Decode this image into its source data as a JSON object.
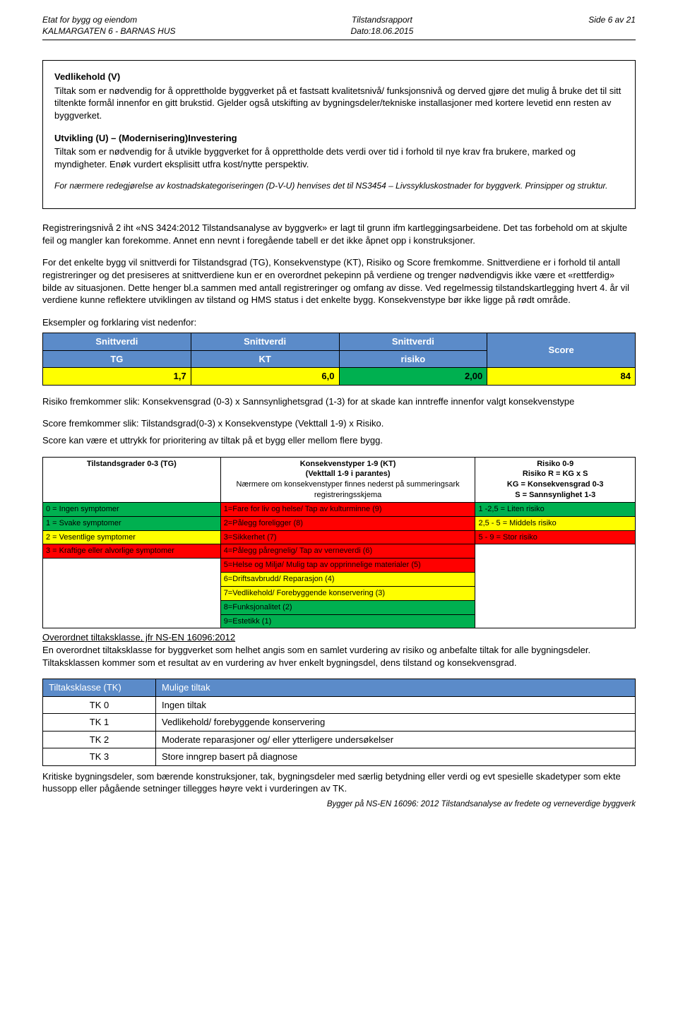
{
  "header": {
    "agency": "Etat for bygg og eiendom",
    "address": "KALMARGATEN 6 - BARNAS HUS",
    "report_type": "Tilstandsrapport",
    "date_label": "Dato:18.06.2015",
    "page_label": "Side 6 av 21"
  },
  "colors": {
    "table_header_blue": "#5b8bc9",
    "yellow": "#ffff00",
    "green": "#00b050",
    "red": "#ff0000",
    "white": "#ffffff"
  },
  "sections": {
    "vedlikehold_title": "Vedlikehold (V)",
    "vedlikehold_body": "Tiltak som er nødvendig for å opprettholde byggverket på et fastsatt kvalitetsnivå/ funksjonsnivå og derved gjøre det mulig å bruke det til sitt tiltenkte formål innenfor en gitt brukstid. Gjelder også utskifting av bygningsdeler/tekniske installasjoner med kortere levetid enn resten av byggverket.",
    "utvikling_title": "Utvikling (U) – (Modernisering)Investering",
    "utvikling_body": "Tiltak som er nødvendig for å utvikle byggverket for å opprettholde dets verdi over tid i forhold til nye krav fra brukere, marked og myndigheter. Enøk vurdert eksplisitt utfra kost/nytte perspektiv.",
    "italic_note": "For nærmere redegjørelse av kostnadskategoriseringen (D-V-U) henvises det til NS3454 – Livssykluskostnader for byggverk. Prinsipper og struktur.",
    "para1": "Registreringsnivå 2 iht «NS 3424:2012 Tilstandsanalyse av byggverk» er lagt til grunn ifm kartleggingsarbeidene. Det tas forbehold om at skjulte feil og mangler kan forekomme. Annet enn nevnt i foregående tabell er det ikke åpnet opp i konstruksjoner.",
    "para2": "For det enkelte bygg vil snittverdi for Tilstandsgrad (TG), Konsekvenstype (KT), Risiko og Score fremkomme. Snittverdiene er i forhold til antall registreringer og det presiseres at snittverdiene kun er en overordnet pekepinn på verdiene og trenger nødvendigvis ikke være et «rettferdig» bilde av situasjonen. Dette henger bl.a sammen med antall registreringer og omfang av disse. Ved regelmessig tilstandskartlegging hvert 4. år vil verdiene kunne reflektere utviklingen av tilstand og HMS status i det enkelte bygg. Konsekvenstype bør ikke ligge på rødt område.",
    "eksempel_intro": "Eksempler og forklaring vist nedenfor:",
    "risiko_line": "Risiko fremkommer slik: Konsekvensgrad (0-3) x Sannsynlighetsgrad (1-3) for at skade kan inntreffe innenfor valgt konsekvenstype",
    "score_line1": "Score fremkommer slik: Tilstandsgrad(0-3) x Konsekvenstype (Vekttall 1-9) x Risiko.",
    "score_line2": "Score kan være et uttrykk for prioritering av tiltak på et bygg eller mellom flere bygg.",
    "overordnet_title": "Overordnet tiltaksklasse, jfr NS-EN 16096:2012",
    "overordnet_body": "En overordnet tiltaksklasse for byggverket som helhet angis som en samlet vurdering av risiko og anbefalte tiltak for alle bygningsdeler. Tiltaksklassen kommer som et resultat av en vurdering av hver enkelt bygningsdel, dens tilstand og konsekvensgrad.",
    "footer_after_tk": "Kritiske bygningsdeler, som bærende konstruksjoner, tak, bygningsdeler med særlig betydning eller verdi og evt spesielle skadetyper som ekte hussopp eller pågående setninger tillegges høyre vekt i vurderingen av TK.",
    "footer_citation": "Bygger på NS-EN 16096: 2012 Tilstandsanalyse av fredete og verneverdige byggverk"
  },
  "example_table": {
    "header_top": [
      "Snittverdi",
      "Snittverdi",
      "Snittverdi",
      ""
    ],
    "header_bot": [
      "TG",
      "KT",
      "risiko",
      "Score"
    ],
    "values": [
      "1,7",
      "6,0",
      "2,00",
      "84"
    ],
    "value_bg": [
      "#ffff00",
      "#ffff00",
      "#00b050",
      "#ffff00"
    ],
    "col_widths": [
      "25%",
      "25%",
      "25%",
      "25%"
    ]
  },
  "legend_table": {
    "header": {
      "tg": "Tilstandsgrader 0-3 (TG)",
      "kt_line1": "Konsekvenstyper 1-9 (KT)",
      "kt_line2": "(Vekttall 1-9 i parantes)",
      "kt_line3": "Nærmere om konsekvenstyper finnes nederst på summeringsark registreringsskjema",
      "risk_line1": "Risiko 0-9",
      "risk_line2": "Risiko R = KG x S",
      "risk_line3": "KG = Konsekvensgrad 0-3",
      "risk_line4": "S = Sannsynlighet 1-3"
    },
    "tg_rows": [
      {
        "text": "0 = Ingen symptomer",
        "bg": "#00b050"
      },
      {
        "text": "1 = Svake symptomer",
        "bg": "#00b050"
      },
      {
        "text": "2 = Vesentlige symptomer",
        "bg": "#ffff00"
      },
      {
        "text": "3 = Kraftige eller alvorlige symptomer",
        "bg": "#ff0000"
      }
    ],
    "kt_rows": [
      {
        "text": "1=Fare for liv og helse/ Tap av kulturminne (9)",
        "bg": "#ff0000"
      },
      {
        "text": "2=Pålegg foreligger (8)",
        "bg": "#ff0000"
      },
      {
        "text": "3=Sikkerhet (7)",
        "bg": "#ff0000"
      },
      {
        "text": "4=Pålegg påregnelig/ Tap av verneverdi (6)",
        "bg": "#ff0000"
      },
      {
        "text": "5=Helse og Miljø/ Mulig tap av opprinnelige materialer (5)",
        "bg": "#ff0000"
      },
      {
        "text": "6=Driftsavbrudd/ Reparasjon (4)",
        "bg": "#ffff00"
      },
      {
        "text": "7=Vedlikehold/ Forebyggende konservering (3)",
        "bg": "#ffff00"
      },
      {
        "text": "8=Funksjonalitet (2)",
        "bg": "#00b050"
      },
      {
        "text": "9=Estetikk (1)",
        "bg": "#00b050"
      }
    ],
    "risk_rows": [
      {
        "text": "1 -2,5 = Liten risiko",
        "bg": "#00b050"
      },
      {
        "text": "2,5 - 5 = Middels risiko",
        "bg": "#ffff00"
      },
      {
        "text": "5 - 9 = Stor risiko",
        "bg": "#ff0000"
      }
    ],
    "col_widths": [
      "30%",
      "43%",
      "27%"
    ]
  },
  "tk_table": {
    "headers": [
      "Tiltaksklasse (TK)",
      "Mulige tiltak"
    ],
    "rows": [
      {
        "code": "TK 0",
        "text": "Ingen tiltak"
      },
      {
        "code": "TK 1",
        "text": "Vedlikehold/ forebyggende konservering"
      },
      {
        "code": "TK 2",
        "text": "Moderate reparasjoner og/ eller ytterligere undersøkelser"
      },
      {
        "code": "TK 3",
        "text": "Store inngrep basert på diagnose"
      }
    ]
  }
}
